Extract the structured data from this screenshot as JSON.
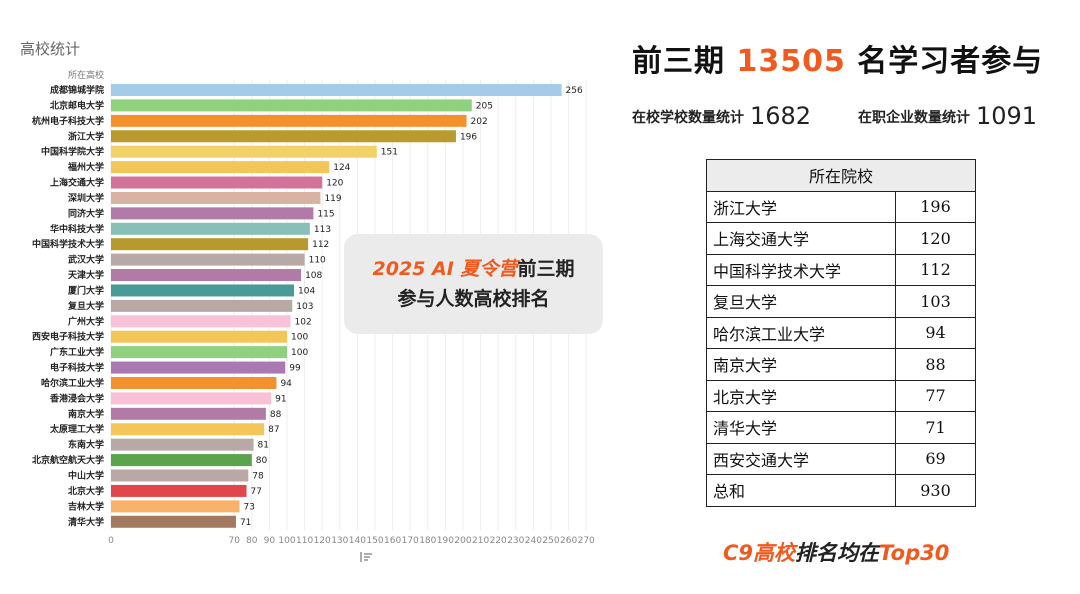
{
  "chart_data": {
    "type": "bar",
    "title": "高校统计",
    "category_header": "所在高校",
    "orientation": "horizontal",
    "categories": [
      "成都锦城学院",
      "北京邮电大学",
      "杭州电子科技大学",
      "浙江大学",
      "中国科学院大学",
      "福州大学",
      "上海交通大学",
      "深圳大学",
      "同济大学",
      "华中科技大学",
      "中国科学技术大学",
      "武汉大学",
      "天津大学",
      "厦门大学",
      "复旦大学",
      "广州大学",
      "西安电子科技大学",
      "广东工业大学",
      "电子科技大学",
      "哈尔滨工业大学",
      "香港浸会大学",
      "南京大学",
      "太原理工大学",
      "东南大学",
      "北京航空航天大学",
      "中山大学",
      "北京大学",
      "吉林大学",
      "清华大学"
    ],
    "values": [
      256,
      205,
      202,
      196,
      151,
      124,
      120,
      119,
      115,
      113,
      112,
      110,
      108,
      104,
      103,
      102,
      100,
      100,
      99,
      94,
      91,
      88,
      87,
      81,
      80,
      78,
      77,
      73,
      71
    ],
    "colors": [
      "#a4cbe8",
      "#8fd17e",
      "#f4912f",
      "#bb9a2d",
      "#f2d267",
      "#f3c65a",
      "#d4739a",
      "#d9b3a2",
      "#b27aa6",
      "#88c0b8",
      "#b79a2e",
      "#b8a9a6",
      "#b27aa6",
      "#4a9b97",
      "#b8a9a6",
      "#f9c1d5",
      "#f3c65a",
      "#8fd17e",
      "#a879b3",
      "#f4912f",
      "#f9c1d5",
      "#b27aa6",
      "#f3c65a",
      "#b8a9a6",
      "#5aa44b",
      "#b8a9a6",
      "#e0474c",
      "#f9b26a",
      "#a2785e"
    ],
    "xticks": [
      0,
      70,
      80,
      90,
      100,
      110,
      120,
      130,
      140,
      150,
      160,
      170,
      180,
      190,
      200,
      210,
      220,
      230,
      240,
      250,
      260,
      270
    ],
    "xlim": [
      0,
      270
    ],
    "grid": true,
    "axis_icon": "sort-icon"
  },
  "headline": {
    "prefix": "前三期 ",
    "number": "13505",
    "suffix": " 名学习者参与"
  },
  "stats": {
    "school_label": "在校学校数量统计",
    "school_value": "1682",
    "company_label": "在职企业数量统计",
    "company_value": "1091"
  },
  "callout": {
    "line1_highlight": "2025 AI 夏令营",
    "line1_rest": "前三期",
    "line2": "参与人数高校排名"
  },
  "table": {
    "header": "所在院校",
    "rows": [
      {
        "name": "浙江大学",
        "value": "196"
      },
      {
        "name": "上海交通大学",
        "value": "120"
      },
      {
        "name": "中国科学技术大学",
        "value": "112"
      },
      {
        "name": "复旦大学",
        "value": "103"
      },
      {
        "name": "哈尔滨工业大学",
        "value": "94"
      },
      {
        "name": "南京大学",
        "value": "88"
      },
      {
        "name": "北京大学",
        "value": "77"
      },
      {
        "name": "清华大学",
        "value": "71"
      },
      {
        "name": "西安交通大学",
        "value": "69"
      },
      {
        "name": "总和",
        "value": "930"
      }
    ]
  },
  "footer": {
    "highlight": "C9高校",
    "middle": "排名均在",
    "end": "Top30"
  }
}
